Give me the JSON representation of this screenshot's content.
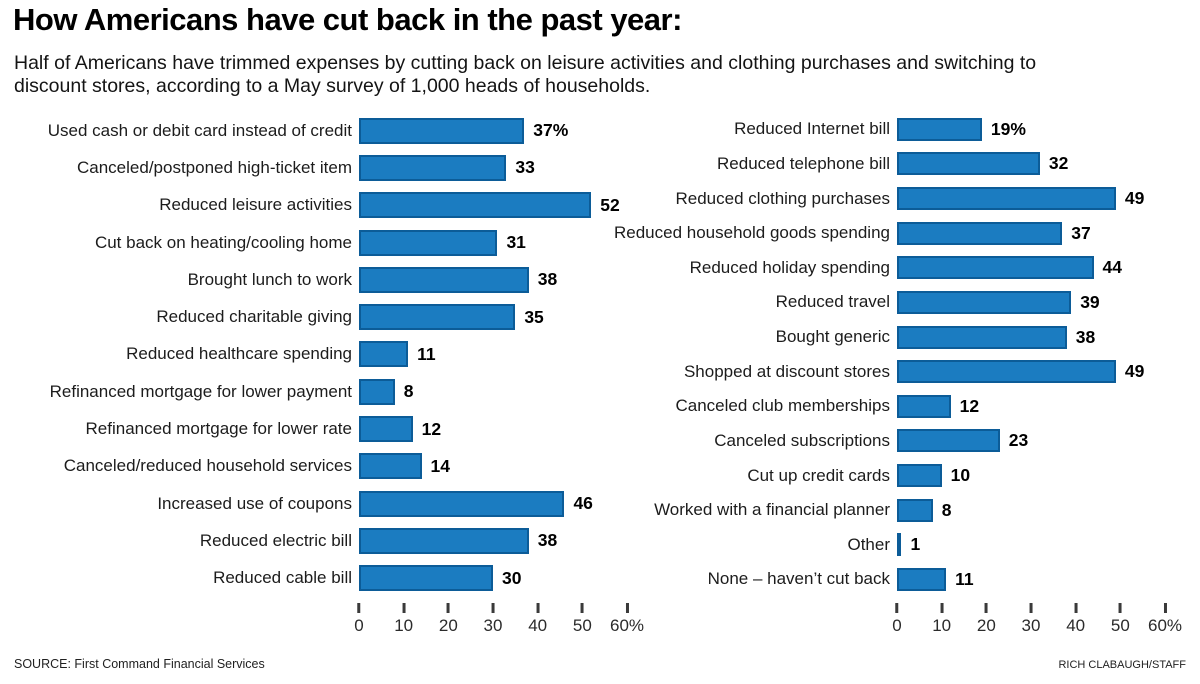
{
  "title": "How Americans have cut back in the past year:",
  "subtitle": "Half of Americans have trimmed expenses by cutting back on leisure activities and clothing purchases and switching to\ndiscount stores, according to a May survey of 1,000 heads of households.",
  "footer": {
    "source": "SOURCE: First Command Financial Services",
    "credit": "RICH CLABAUGH/STAFF"
  },
  "colors": {
    "bar_fill": "#1b7cc1",
    "bar_border": "#0c5c98"
  },
  "axis": {
    "ticks": [
      "0",
      "10",
      "20",
      "30",
      "40",
      "50",
      "60%"
    ],
    "tick_values": [
      0,
      10,
      20,
      30,
      40,
      50,
      60
    ],
    "max": 60
  },
  "chart_data": [
    {
      "type": "bar",
      "orientation": "horizontal",
      "xlim": [
        0,
        60
      ],
      "categories": [
        "Used cash or debit card instead of credit",
        "Canceled/postponed high-ticket item",
        "Reduced leisure activities",
        "Cut back on heating/cooling home",
        "Brought lunch to work",
        "Reduced charitable giving",
        "Reduced healthcare spending",
        "Refinanced mortgage for lower payment",
        "Refinanced mortgage for lower rate",
        "Canceled/reduced household services",
        "Increased use of coupons",
        "Reduced electric bill",
        "Reduced cable bill"
      ],
      "values": [
        37,
        33,
        52,
        31,
        38,
        35,
        11,
        8,
        12,
        14,
        46,
        38,
        30
      ],
      "value_labels": [
        "37%",
        "33",
        "52",
        "31",
        "38",
        "35",
        "11",
        "8",
        "12",
        "14",
        "46",
        "38",
        "30"
      ]
    },
    {
      "type": "bar",
      "orientation": "horizontal",
      "xlim": [
        0,
        60
      ],
      "categories": [
        "Reduced Internet bill",
        "Reduced telephone bill",
        "Reduced clothing purchases",
        "Reduced household goods spending",
        "Reduced holiday spending",
        "Reduced travel",
        "Bought generic",
        "Shopped at discount stores",
        "Canceled club memberships",
        "Canceled subscriptions",
        "Cut up credit cards",
        "Worked with a financial planner",
        "Other",
        "None – haven’t cut back"
      ],
      "values": [
        19,
        32,
        49,
        37,
        44,
        39,
        38,
        49,
        12,
        23,
        10,
        8,
        1,
        11
      ],
      "value_labels": [
        "19%",
        "32",
        "49",
        "37",
        "44",
        "39",
        "38",
        "49",
        "12",
        "23",
        "10",
        "8",
        "1",
        "11"
      ]
    }
  ]
}
